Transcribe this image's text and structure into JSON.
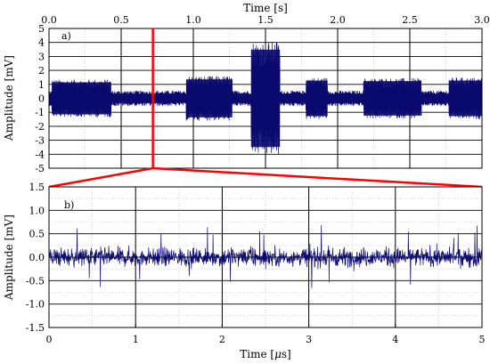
{
  "chart_data": [
    {
      "type": "line",
      "panel_label": "a)",
      "xlabel": "Time [s]",
      "ylabel": "Amplitude [mV]",
      "xlim": [
        0.0,
        3.0
      ],
      "ylim": [
        -5,
        5
      ],
      "x_ticks": [
        "0.0",
        "0.5",
        "1.0",
        "1.5",
        "2.0",
        "2.5",
        "3.0"
      ],
      "y_ticks": [
        "5",
        "4",
        "3",
        "2",
        "1",
        "0",
        "-1",
        "-2",
        "-3",
        "-4",
        "-5"
      ],
      "x_axis_position": "top",
      "grid": true,
      "line_color": "#0a0a6e",
      "baseline_noise_amplitude_mV": 0.55,
      "bursts": [
        {
          "start_s": 0.02,
          "end_s": 0.43,
          "amplitude_mV": 1.35
        },
        {
          "start_s": 0.95,
          "end_s": 1.27,
          "amplitude_mV": 1.6
        },
        {
          "start_s": 1.4,
          "end_s": 1.6,
          "amplitude_mV": 4.1
        },
        {
          "start_s": 1.78,
          "end_s": 1.93,
          "amplitude_mV": 1.5
        },
        {
          "start_s": 2.18,
          "end_s": 2.58,
          "amplitude_mV": 1.45
        },
        {
          "start_s": 2.77,
          "end_s": 3.17,
          "amplitude_mV": 1.5
        }
      ],
      "zoom_marker_time_s": 0.72,
      "zoom_marker_color": "#ff0000"
    },
    {
      "type": "line",
      "panel_label": "b)",
      "xlabel": "Time [μs]",
      "ylabel": "Amplitude [mV]",
      "xlim": [
        0,
        5
      ],
      "ylim": [
        -1.5,
        1.5
      ],
      "x_ticks": [
        "0",
        "1",
        "2",
        "3",
        "4",
        "5"
      ],
      "y_ticks": [
        "1.5",
        "1.0",
        "0.5",
        "0.0",
        "-0.5",
        "-1.0",
        "-1.5"
      ],
      "grid": true,
      "line_color": "#0a0a6e",
      "noise_amplitude_mV": 0.5
    }
  ]
}
